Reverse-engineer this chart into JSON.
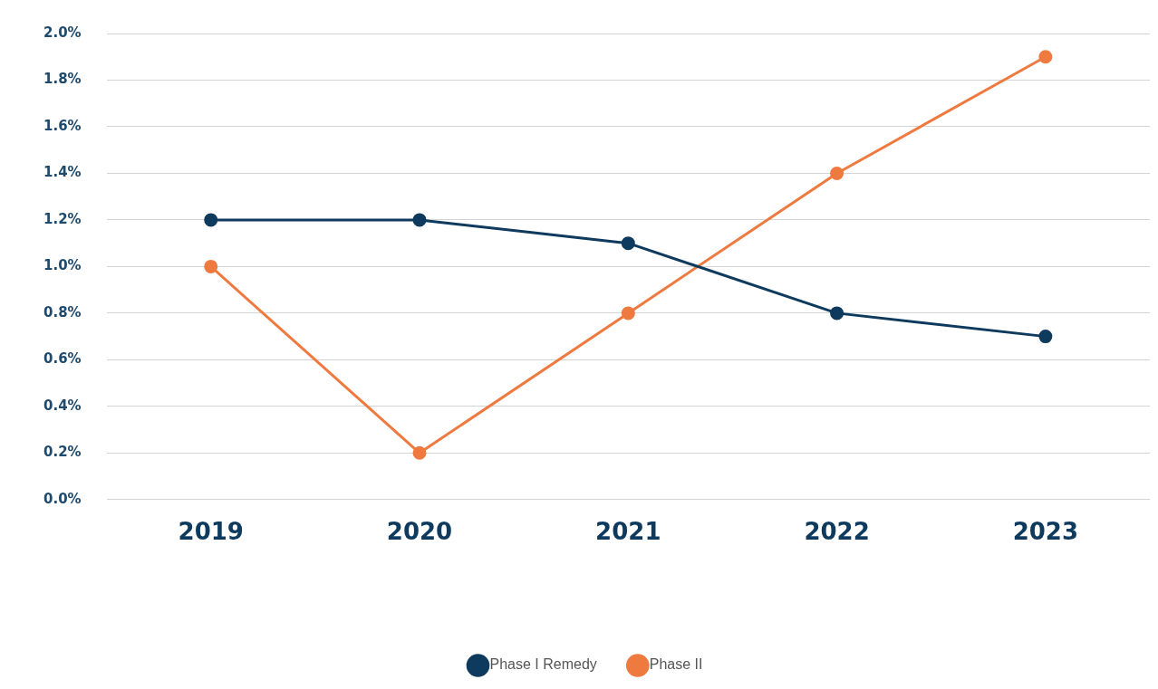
{
  "chart_data": {
    "type": "line",
    "categories": [
      "2019",
      "2020",
      "2021",
      "2022",
      "2023"
    ],
    "series": [
      {
        "name": "Phase I Remedy",
        "color": "#0e3a5e",
        "values": [
          1.2,
          1.2,
          1.1,
          0.8,
          0.7
        ]
      },
      {
        "name": "Phase II",
        "color": "#ef7a40",
        "values": [
          1.0,
          0.2,
          0.8,
          1.4,
          1.9
        ]
      }
    ],
    "ylim": [
      0,
      2
    ],
    "yticks": [
      {
        "value": 0,
        "label": "0.0%"
      },
      {
        "value": 0.2,
        "label": "0.2%"
      },
      {
        "value": 0.4,
        "label": "0.4%"
      },
      {
        "value": 0.6,
        "label": "0.6%"
      },
      {
        "value": 0.8,
        "label": "0.8%"
      },
      {
        "value": 1.0,
        "label": "1.0%"
      },
      {
        "value": 1.2,
        "label": "1.2%"
      },
      {
        "value": 1.4,
        "label": "1.4%"
      },
      {
        "value": 1.6,
        "label": "1.6%"
      },
      {
        "value": 1.8,
        "label": "1.8%"
      },
      {
        "value": 2.0,
        "label": "2.0%"
      }
    ],
    "grid": "y",
    "legend": "bottom",
    "marker": "circle",
    "line_style": "solid"
  }
}
